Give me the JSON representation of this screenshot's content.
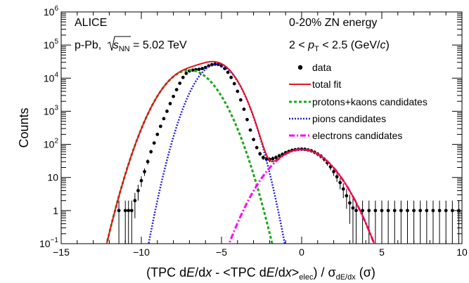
{
  "chart_data": {
    "type": "scatter",
    "title": "",
    "xlabel": "(TPC dE/dx - <TPC dE/dx>elec) / σdE/dx (σ)",
    "ylabel": "Counts",
    "xlim": [
      -15,
      10
    ],
    "ylim": [
      0.1,
      1000000
    ],
    "yscale": "log",
    "grid": false,
    "legend_placement": "right",
    "x_ticks": [
      -15,
      -10,
      -5,
      0,
      5,
      10
    ],
    "y_ticks": [
      0.1,
      1,
      10,
      100,
      1000,
      10000,
      100000,
      1000000
    ],
    "x_tick_labels": [
      "−15",
      "−10",
      "−5",
      "0",
      "5",
      "10"
    ],
    "annotations": {
      "experiment": "ALICE",
      "system_prefix": "p-Pb, ",
      "system_sqrt": "s",
      "system_sub": "NN",
      "system_suffix": " = 5.02 TeV",
      "centrality": "0-20% ZN energy",
      "pt_prefix": "2 < ",
      "pt_var": "p",
      "pt_sub": "T",
      "pt_suffix": " < 2.5 (GeV/",
      "pt_c": "c",
      "pt_close": ")"
    },
    "axis_text": {
      "x_open": "(TPC d",
      "x_E1": "E",
      "x_mid1": "/d",
      "x_x1": "x",
      "x_mid2": " - <TPC d",
      "x_E2": "E",
      "x_mid3": "/d",
      "x_x2": "x",
      "x_gt": ">",
      "x_elec": "elec",
      "x_mid4": ") / σ",
      "x_sig_sub": "dE/dx",
      "x_end": " (σ)",
      "y_title": "Counts"
    },
    "legend": [
      {
        "label": "data",
        "style": "marker",
        "color": "#000000"
      },
      {
        "label": "total fit",
        "style": "solid",
        "color": "#e8121d"
      },
      {
        "label": "protons+kaons candidates",
        "style": "dashed",
        "color": "#18a818"
      },
      {
        "label": "pions candidates",
        "style": "dotted",
        "color": "#2020e0"
      },
      {
        "label": "electrons candidates",
        "style": "dashdot",
        "color": "#ff00ff"
      }
    ],
    "series": [
      {
        "name": "data",
        "points": [
          [
            -11.0,
            1
          ],
          [
            -10.8,
            1
          ],
          [
            -10.6,
            1
          ],
          [
            -10.4,
            2
          ],
          [
            -10.2,
            4
          ],
          [
            -10.0,
            8
          ],
          [
            -9.8,
            15
          ],
          [
            -9.6,
            30
          ],
          [
            -9.4,
            60
          ],
          [
            -9.2,
            110
          ],
          [
            -9.0,
            200
          ],
          [
            -8.8,
            350
          ],
          [
            -8.6,
            600
          ],
          [
            -8.4,
            1000
          ],
          [
            -8.2,
            1700
          ],
          [
            -8.0,
            2800
          ],
          [
            -7.8,
            4500
          ],
          [
            -7.6,
            7000
          ],
          [
            -7.4,
            10500
          ],
          [
            -7.2,
            14000
          ],
          [
            -7.0,
            16500
          ],
          [
            -6.8,
            17500
          ],
          [
            -6.6,
            18000
          ],
          [
            -6.4,
            18500
          ],
          [
            -6.2,
            19500
          ],
          [
            -6.0,
            21000
          ],
          [
            -5.8,
            23500
          ],
          [
            -5.6,
            25500
          ],
          [
            -5.4,
            26500
          ],
          [
            -5.2,
            26000
          ],
          [
            -5.0,
            23500
          ],
          [
            -4.8,
            19500
          ],
          [
            -4.6,
            15000
          ],
          [
            -4.4,
            10500
          ],
          [
            -4.2,
            6800
          ],
          [
            -4.0,
            4000
          ],
          [
            -3.8,
            2200
          ],
          [
            -3.6,
            1150
          ],
          [
            -3.4,
            560
          ],
          [
            -3.2,
            270
          ],
          [
            -3.0,
            140
          ],
          [
            -2.8,
            80
          ],
          [
            -2.6,
            52
          ],
          [
            -2.4,
            40
          ],
          [
            -2.2,
            36
          ],
          [
            -2.0,
            35
          ],
          [
            -1.8,
            37
          ],
          [
            -1.6,
            40
          ],
          [
            -1.4,
            45
          ],
          [
            -1.2,
            50
          ],
          [
            -1.0,
            56
          ],
          [
            -0.8,
            61
          ],
          [
            -0.6,
            66
          ],
          [
            -0.4,
            69
          ],
          [
            -0.2,
            71
          ],
          [
            0.0,
            72
          ],
          [
            0.2,
            71
          ],
          [
            0.4,
            68
          ],
          [
            0.6,
            64
          ],
          [
            0.8,
            58
          ],
          [
            1.0,
            51
          ],
          [
            1.2,
            44
          ],
          [
            1.4,
            36
          ],
          [
            1.6,
            28
          ],
          [
            1.8,
            21
          ],
          [
            2.0,
            15
          ],
          [
            2.2,
            10.5
          ],
          [
            2.4,
            7
          ],
          [
            2.6,
            4.5
          ],
          [
            2.8,
            2.8
          ],
          [
            3.0,
            1.7
          ],
          [
            3.2,
            1.2
          ],
          [
            3.4,
            1
          ],
          [
            3.8,
            1
          ],
          [
            4.2,
            1
          ],
          [
            4.6,
            1
          ],
          [
            5.0,
            1
          ],
          [
            5.4,
            1
          ],
          [
            5.8,
            1
          ],
          [
            6.2,
            1
          ],
          [
            6.6,
            1
          ],
          [
            7.0,
            1
          ],
          [
            7.4,
            1
          ],
          [
            7.8,
            1
          ],
          [
            8.2,
            1
          ],
          [
            8.6,
            1
          ],
          [
            9.0,
            1
          ],
          [
            9.4,
            1
          ],
          [
            9.8,
            1
          ],
          [
            -11.4,
            1
          ]
        ]
      },
      {
        "name": "total fit",
        "components": [
          {
            "A": 17500,
            "mu": -7.0,
            "sigma": 1.05
          },
          {
            "A": 26000,
            "mu": -5.3,
            "sigma": 0.85
          },
          {
            "A": 70,
            "mu": 0.0,
            "sigma": 1.25
          }
        ]
      },
      {
        "name": "protons+kaons candidates",
        "A": 17500,
        "mu": -7.0,
        "sigma": 1.05
      },
      {
        "name": "pions candidates",
        "A": 26000,
        "mu": -5.3,
        "sigma": 0.85
      },
      {
        "name": "electrons candidates",
        "A": 70,
        "mu": 0.0,
        "sigma": 1.25
      }
    ]
  }
}
